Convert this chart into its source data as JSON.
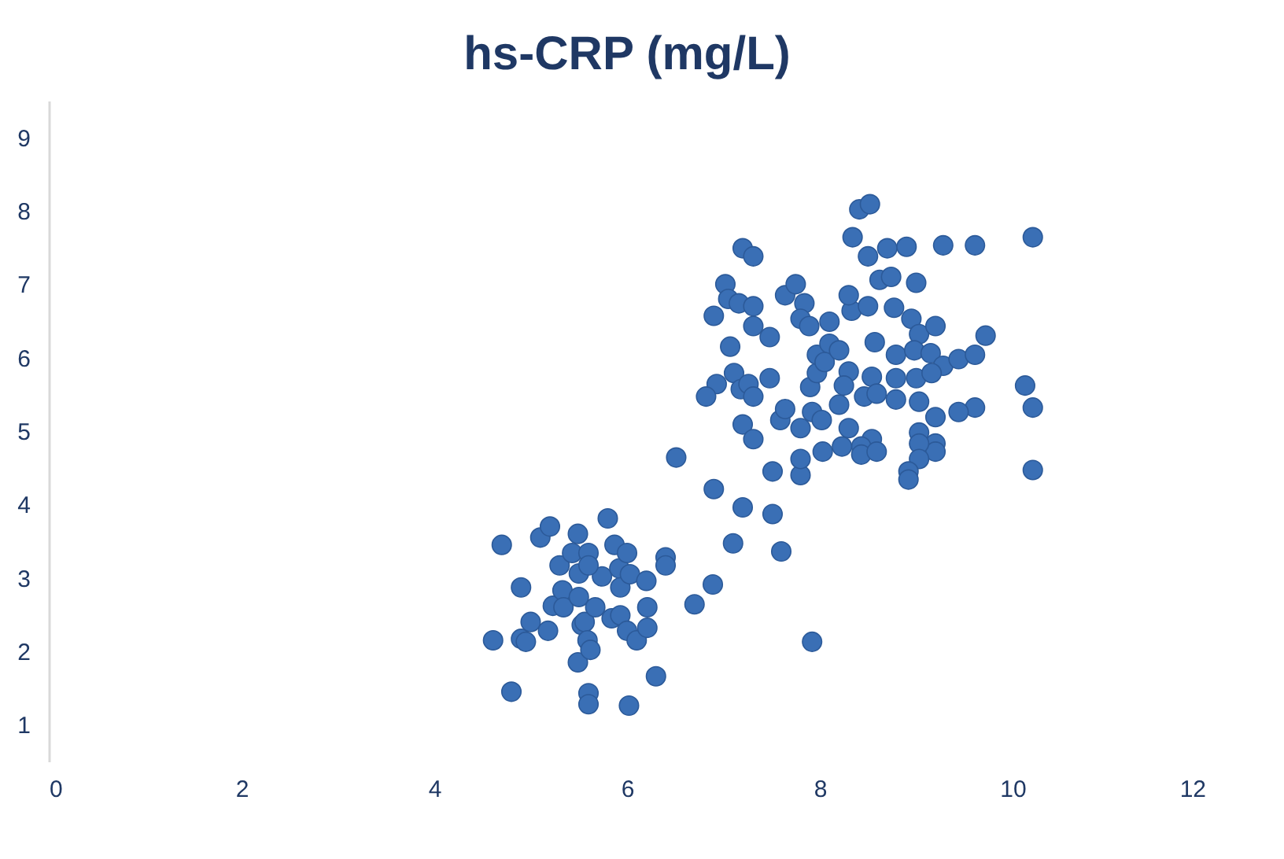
{
  "chart_data": {
    "type": "scatter",
    "title": "hs-CRP (mg/L)",
    "xlim": [
      0,
      12
    ],
    "xticks": [
      0,
      2,
      4,
      6,
      8,
      10,
      12
    ],
    "ylim": [
      0.5,
      9.5
    ],
    "yticks": [
      1,
      2,
      3,
      4,
      5,
      6,
      7,
      8,
      9
    ],
    "grid": false,
    "marker": "circle",
    "series": [
      {
        "color": "#3a6fb5",
        "x": [
          4.61,
          4.7,
          4.8,
          4.9,
          4.9,
          5.0,
          4.95,
          5.1,
          5.2,
          5.23,
          5.3,
          5.18,
          5.33,
          5.43,
          5.34,
          5.49,
          5.5,
          5.5,
          5.53,
          5.49,
          5.56,
          5.6,
          5.6,
          5.59,
          5.62,
          5.6,
          5.67,
          5.74,
          5.8,
          5.84,
          5.87,
          5.92,
          5.93,
          5.93,
          6.0,
          6.0,
          6.03,
          6.02,
          6.1,
          6.2,
          6.21,
          6.21,
          6.3,
          6.4,
          6.4,
          5.6,
          6.51,
          6.7,
          6.89,
          6.9,
          7.1,
          7.2,
          7.51,
          7.6,
          7.92,
          7.51,
          7.8,
          7.8,
          7.2,
          7.31,
          7.02,
          7.05,
          6.9,
          7.16,
          7.31,
          7.31,
          7.64,
          7.75,
          7.84,
          6.93,
          6.82,
          7.07,
          7.11,
          7.18,
          7.26,
          7.31,
          7.2,
          7.31,
          7.48,
          7.48,
          7.59,
          7.64,
          7.8,
          7.92,
          7.9,
          7.97,
          7.97,
          8.1,
          8.05,
          8.2,
          8.3,
          8.25,
          7.8,
          7.89,
          8.1,
          8.33,
          8.3,
          8.34,
          8.41,
          8.52,
          8.5,
          8.62,
          8.74,
          8.7,
          8.9,
          9.0,
          9.28,
          9.61,
          10.21,
          8.5,
          8.77,
          8.95,
          9.03,
          9.2,
          8.57,
          8.79,
          8.98,
          9.15,
          9.28,
          9.44,
          9.61,
          9.72,
          10.13,
          10.21,
          10.21,
          9.61,
          9.44,
          8.54,
          8.79,
          9.0,
          9.16,
          8.46,
          8.59,
          8.79,
          9.03,
          9.2,
          9.03,
          9.2,
          9.2,
          9.03,
          9.03,
          8.92,
          8.92,
          8.54,
          8.43,
          8.43,
          8.59,
          8.23,
          8.03,
          8.02,
          8.2,
          8.3
        ],
        "values": [
          2.15,
          3.45,
          1.45,
          2.17,
          2.87,
          2.4,
          2.13,
          3.55,
          3.7,
          2.62,
          3.17,
          2.28,
          2.83,
          3.34,
          2.6,
          3.6,
          3.06,
          2.74,
          2.36,
          1.85,
          2.4,
          1.43,
          1.28,
          2.15,
          2.02,
          3.34,
          2.6,
          3.02,
          3.81,
          2.45,
          3.45,
          3.13,
          2.87,
          2.49,
          3.34,
          2.28,
          3.05,
          1.26,
          2.15,
          2.96,
          2.6,
          2.32,
          1.66,
          3.28,
          3.17,
          3.17,
          4.64,
          2.64,
          2.91,
          4.21,
          3.47,
          3.96,
          3.87,
          3.36,
          2.13,
          4.45,
          4.4,
          4.62,
          7.49,
          7.38,
          7.0,
          6.8,
          6.57,
          6.74,
          6.7,
          6.43,
          6.85,
          7.0,
          6.74,
          5.64,
          5.47,
          6.15,
          5.79,
          5.57,
          5.64,
          5.47,
          5.09,
          4.89,
          5.72,
          6.28,
          5.15,
          5.3,
          5.04,
          5.26,
          5.6,
          5.79,
          6.04,
          6.19,
          5.94,
          6.1,
          5.81,
          5.62,
          6.53,
          6.43,
          6.49,
          6.64,
          6.85,
          7.64,
          8.02,
          8.09,
          7.38,
          7.06,
          7.1,
          7.49,
          7.51,
          7.02,
          7.53,
          7.53,
          7.64,
          6.7,
          6.68,
          6.53,
          6.32,
          6.43,
          6.21,
          6.04,
          6.1,
          6.06,
          5.89,
          5.98,
          6.04,
          6.3,
          5.62,
          5.32,
          4.47,
          5.32,
          5.26,
          5.74,
          5.72,
          5.72,
          5.79,
          5.47,
          5.51,
          5.43,
          5.4,
          5.19,
          4.98,
          4.83,
          4.72,
          4.83,
          4.62,
          4.45,
          4.34,
          4.89,
          4.79,
          4.68,
          4.72,
          4.79,
          4.72,
          5.15,
          5.36,
          5.04
        ]
      }
    ]
  }
}
